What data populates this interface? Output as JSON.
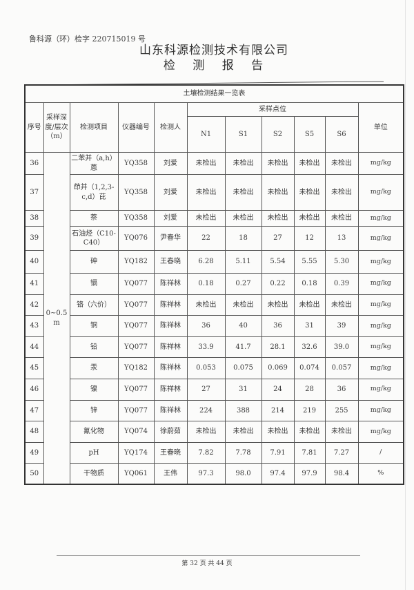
{
  "header": {
    "report_number": "鲁科源（环）检字 220715019 号",
    "company": "山东科源检测技术有限公司",
    "report_title": "检 测 报 告"
  },
  "table": {
    "title": "土壤检测结果一览表",
    "headers": {
      "seq": "序号",
      "depth": "采样深度/层次（m）",
      "item": "检测项目",
      "instrument": "仪器编号",
      "tester": "检测人",
      "sampling_points": "采样点位",
      "points": [
        "N1",
        "S1",
        "S2",
        "S5",
        "S6"
      ],
      "unit": "单位"
    },
    "depth_value": "0~0.5 m",
    "rows": [
      {
        "seq": "36",
        "item": "二苯并（a,h）蒽",
        "instrument": "YQ358",
        "tester": "刘爱",
        "values": [
          "未检出",
          "未检出",
          "未检出",
          "未检出",
          "未检出"
        ],
        "unit": "mg/kg"
      },
      {
        "seq": "37",
        "item": "茚并（1,2,3-c,d）芘",
        "instrument": "YQ358",
        "tester": "刘爱",
        "values": [
          "未检出",
          "未检出",
          "未检出",
          "未检出",
          "未检出"
        ],
        "unit": "mg/kg"
      },
      {
        "seq": "38",
        "item": "萘",
        "instrument": "YQ358",
        "tester": "刘爱",
        "values": [
          "未检出",
          "未检出",
          "未检出",
          "未检出",
          "未检出"
        ],
        "unit": "mg/kg"
      },
      {
        "seq": "39",
        "item": "石油烃（C10-C40）",
        "instrument": "YQ076",
        "tester": "尹春华",
        "values": [
          "22",
          "18",
          "27",
          "12",
          "13"
        ],
        "unit": "mg/kg"
      },
      {
        "seq": "40",
        "item": "砷",
        "instrument": "YQ182",
        "tester": "王春晓",
        "values": [
          "6.28",
          "5.11",
          "5.54",
          "5.55",
          "5.30"
        ],
        "unit": "mg/kg"
      },
      {
        "seq": "41",
        "item": "镉",
        "instrument": "YQ077",
        "tester": "陈祥林",
        "values": [
          "0.18",
          "0.27",
          "0.22",
          "0.18",
          "0.39"
        ],
        "unit": "mg/kg"
      },
      {
        "seq": "42",
        "item": "铬（六价）",
        "instrument": "YQ077",
        "tester": "陈祥林",
        "values": [
          "未检出",
          "未检出",
          "未检出",
          "未检出",
          "未检出"
        ],
        "unit": "mg/kg"
      },
      {
        "seq": "43",
        "item": "铜",
        "instrument": "YQ077",
        "tester": "陈祥林",
        "values": [
          "36",
          "40",
          "36",
          "31",
          "39"
        ],
        "unit": "mg/kg"
      },
      {
        "seq": "44",
        "item": "铅",
        "instrument": "YQ077",
        "tester": "陈祥林",
        "values": [
          "33.9",
          "41.7",
          "28.1",
          "32.6",
          "39.0"
        ],
        "unit": "mg/kg"
      },
      {
        "seq": "45",
        "item": "汞",
        "instrument": "YQ182",
        "tester": "陈祥林",
        "values": [
          "0.053",
          "0.075",
          "0.069",
          "0.074",
          "0.057"
        ],
        "unit": "mg/kg"
      },
      {
        "seq": "46",
        "item": "镍",
        "instrument": "YQ077",
        "tester": "陈祥林",
        "values": [
          "27",
          "31",
          "24",
          "28",
          "36"
        ],
        "unit": "mg/kg"
      },
      {
        "seq": "47",
        "item": "锌",
        "instrument": "YQ077",
        "tester": "陈祥林",
        "values": [
          "224",
          "388",
          "214",
          "219",
          "255"
        ],
        "unit": "mg/kg"
      },
      {
        "seq": "48",
        "item": "氰化物",
        "instrument": "YQ074",
        "tester": "徐蔚茹",
        "values": [
          "未检出",
          "未检出",
          "未检出",
          "未检出",
          "未检出"
        ],
        "unit": "mg/kg"
      },
      {
        "seq": "49",
        "item": "pH",
        "instrument": "YQ174",
        "tester": "王春晓",
        "values": [
          "7.82",
          "7.78",
          "7.91",
          "7.81",
          "7.27"
        ],
        "unit": "/"
      },
      {
        "seq": "50",
        "item": "干物质",
        "instrument": "YQ061",
        "tester": "王伟",
        "values": [
          "97.3",
          "98.0",
          "97.4",
          "97.9",
          "98.4"
        ],
        "unit": "%"
      }
    ]
  },
  "footer": {
    "page": "第 32 页 共 44 页"
  }
}
